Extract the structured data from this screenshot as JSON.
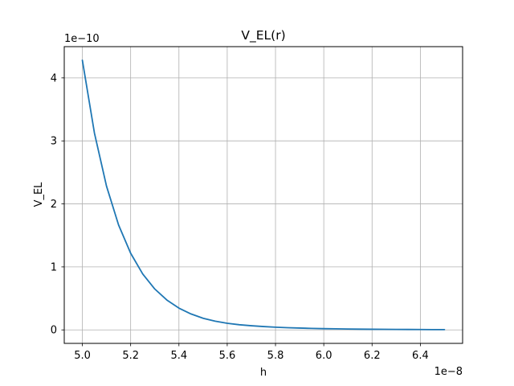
{
  "chart_data": {
    "type": "line",
    "title": "V_EL(r)",
    "xlabel": "h",
    "ylabel": "V_EL",
    "x_offset_text": "1e−8",
    "y_offset_text": "1e−10",
    "x_scale": 1e-08,
    "y_scale": 1e-10,
    "xlim": [
      4.925,
      6.575
    ],
    "ylim": [
      -0.214,
      4.496
    ],
    "x_ticks": [
      5.0,
      5.2,
      5.4,
      5.6,
      5.8,
      6.0,
      6.2,
      6.4
    ],
    "x_tick_labels": [
      "5.0",
      "5.2",
      "5.4",
      "5.6",
      "5.8",
      "6.0",
      "6.2",
      "6.4"
    ],
    "y_ticks": [
      0,
      1,
      2,
      3,
      4
    ],
    "y_tick_labels": [
      "0",
      "1",
      "2",
      "3",
      "4"
    ],
    "grid": true,
    "series": [
      {
        "color": "#1f77b4",
        "x": [
          5.0,
          5.05,
          5.1,
          5.15,
          5.2,
          5.25,
          5.3,
          5.35,
          5.4,
          5.45,
          5.5,
          5.55,
          5.6,
          5.65,
          5.7,
          5.75,
          5.8,
          5.85,
          5.9,
          5.95,
          6.0,
          6.05,
          6.1,
          6.15,
          6.2,
          6.25,
          6.3,
          6.35,
          6.4,
          6.45,
          6.5
        ],
        "values": [
          4.28,
          3.125,
          2.282,
          1.666,
          1.217,
          0.888,
          0.649,
          0.474,
          0.346,
          0.253,
          0.185,
          0.138,
          0.105,
          0.082,
          0.066,
          0.053,
          0.043,
          0.035,
          0.029,
          0.024,
          0.02,
          0.017,
          0.014,
          0.012,
          0.01,
          0.009,
          0.008,
          0.007,
          0.006,
          0.005,
          0.005
        ]
      }
    ]
  }
}
